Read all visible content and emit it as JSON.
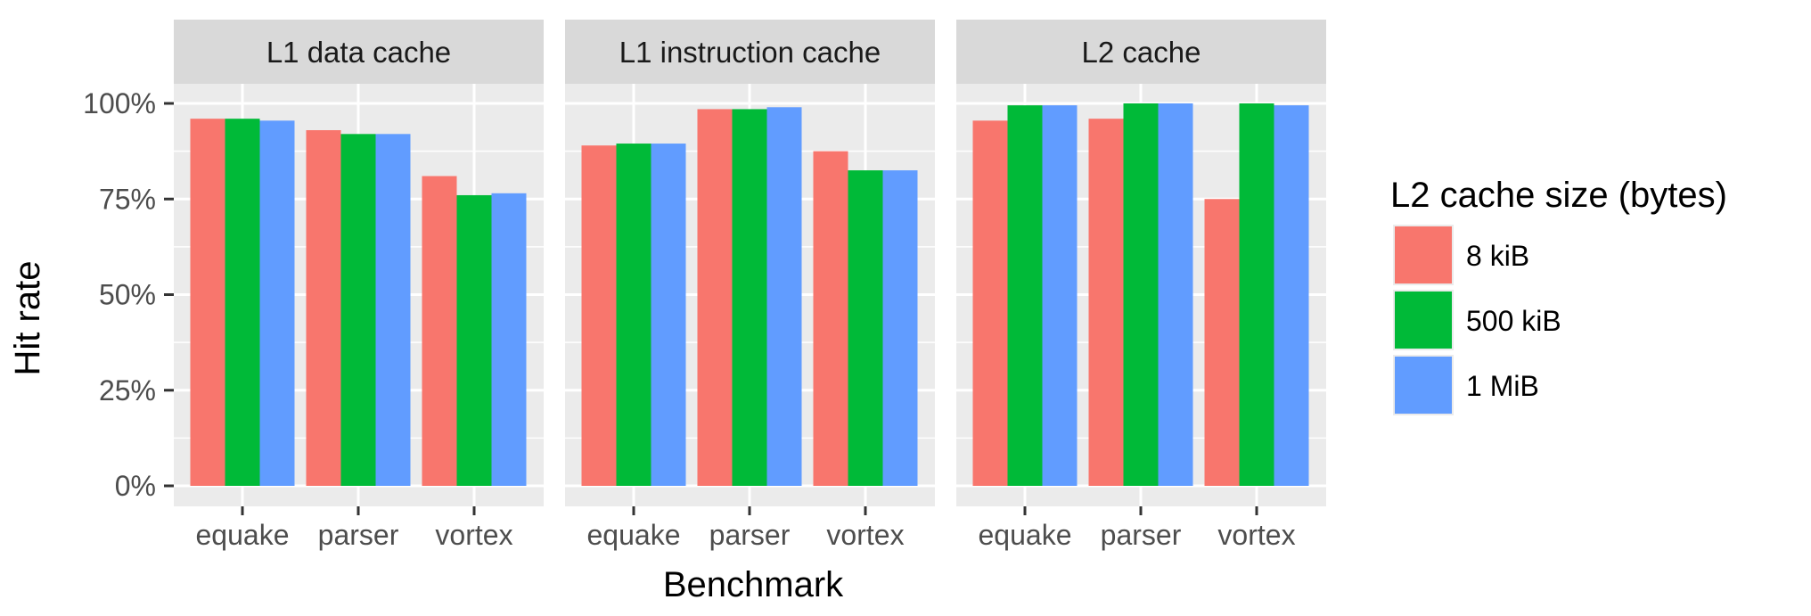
{
  "chart_data": {
    "type": "bar",
    "facets": [
      {
        "title": "L1 data cache",
        "categories": [
          "equake",
          "parser",
          "vortex"
        ],
        "series": [
          {
            "name": "8 kiB",
            "values": [
              96,
              93,
              81
            ]
          },
          {
            "name": "500 kiB",
            "values": [
              96,
              92,
              76
            ]
          },
          {
            "name": "1 MiB",
            "values": [
              95.5,
              92,
              76.5
            ]
          }
        ]
      },
      {
        "title": "L1 instruction cache",
        "categories": [
          "equake",
          "parser",
          "vortex"
        ],
        "series": [
          {
            "name": "8 kiB",
            "values": [
              89,
              98.5,
              87.5
            ]
          },
          {
            "name": "500 kiB",
            "values": [
              89.5,
              98.5,
              82.5
            ]
          },
          {
            "name": "1 MiB",
            "values": [
              89.5,
              99,
              82.5
            ]
          }
        ]
      },
      {
        "title": "L2 cache",
        "categories": [
          "equake",
          "parser",
          "vortex"
        ],
        "series": [
          {
            "name": "8 kiB",
            "values": [
              95.5,
              96,
              75
            ]
          },
          {
            "name": "500 kiB",
            "values": [
              99.5,
              100,
              100
            ]
          },
          {
            "name": "1 MiB",
            "values": [
              99.5,
              100,
              99.5
            ]
          }
        ]
      }
    ],
    "ylim": [
      -5,
      120
    ],
    "y_ticks": [
      0,
      25,
      50,
      75,
      100
    ],
    "y_tick_labels": [
      "0%",
      "25%",
      "50%",
      "75%",
      "100%"
    ],
    "xlabel": "Benchmark",
    "ylabel": "Hit rate",
    "legend": {
      "title": "L2 cache size (bytes)",
      "position": "right",
      "entries": [
        "8 kiB",
        "500 kiB",
        "1 MiB"
      ]
    },
    "colors": [
      "#F8766D",
      "#00BA38",
      "#619CFF"
    ],
    "grid": true,
    "panel_background": "#EBEBEB",
    "strip_background": "#D9D9D9"
  }
}
